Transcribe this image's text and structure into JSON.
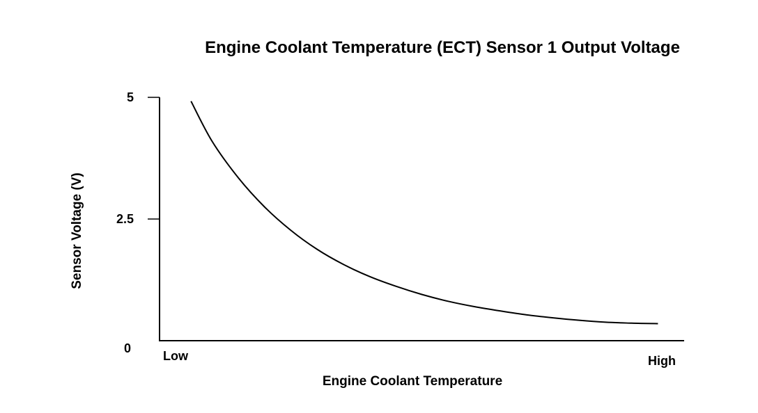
{
  "chart_data": {
    "type": "line",
    "title": "Engine Coolant Temperature (ECT) Sensor 1 Output Voltage",
    "xlabel": "Engine Coolant Temperature",
    "ylabel": "Sensor Voltage (V)",
    "x_tick_labels": [
      "Low",
      "High"
    ],
    "y_ticks": [
      {
        "value": 0,
        "label": "0"
      },
      {
        "value": 2.5,
        "label": "2.5"
      },
      {
        "value": 5,
        "label": "5"
      }
    ],
    "xlim": [
      0,
      1
    ],
    "ylim": [
      0,
      5
    ],
    "grid": false,
    "legend": "none",
    "series": [
      {
        "x": [
          0.06,
          0.1,
          0.15,
          0.2,
          0.25,
          0.3,
          0.35,
          0.4,
          0.45,
          0.5,
          0.55,
          0.6,
          0.65,
          0.7,
          0.75,
          0.8,
          0.85,
          0.9,
          0.95
        ],
        "values": [
          4.92,
          4.1,
          3.35,
          2.75,
          2.27,
          1.88,
          1.57,
          1.32,
          1.12,
          0.95,
          0.81,
          0.7,
          0.61,
          0.53,
          0.47,
          0.42,
          0.38,
          0.36,
          0.35
        ]
      }
    ]
  }
}
